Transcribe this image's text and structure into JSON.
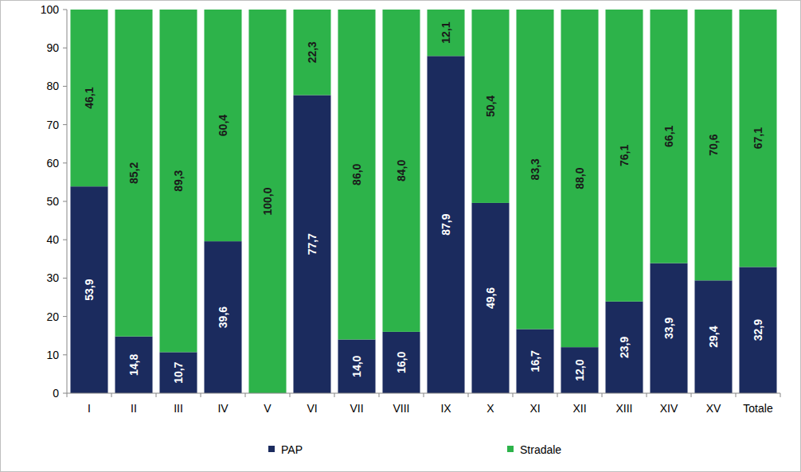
{
  "chart_data": {
    "type": "bar",
    "stacked": true,
    "data_labels": true,
    "grid": false,
    "legend": "bottom",
    "categories": [
      "I",
      "II",
      "III",
      "IV",
      "V",
      "VI",
      "VII",
      "VIII",
      "IX",
      "X",
      "XI",
      "XII",
      "XIII",
      "XIV",
      "XV",
      "Totale"
    ],
    "series": [
      {
        "name": "PAP",
        "color": "#1b2b5e",
        "values": [
          53.9,
          14.8,
          10.7,
          39.6,
          0,
          77.7,
          14.0,
          16.0,
          87.9,
          49.6,
          16.7,
          12.0,
          23.9,
          33.9,
          29.4,
          32.9
        ],
        "value_labels": [
          "53,9",
          "14,8",
          "10,7",
          "39,6",
          null,
          "77,7",
          "14,0",
          "16,0",
          "87,9",
          "49,6",
          "16,7",
          "12,0",
          "23,9",
          "33,9",
          "29,4",
          "32,9"
        ]
      },
      {
        "name": "Stradale",
        "color": "#2db34a",
        "values": [
          46.1,
          85.2,
          89.3,
          60.4,
          100.0,
          22.3,
          86.0,
          84.0,
          12.1,
          50.4,
          83.3,
          88.0,
          76.1,
          66.1,
          70.6,
          67.1
        ],
        "value_labels": [
          "46,1",
          "85,2",
          "89,3",
          "60,4",
          "100,0",
          "22,3",
          "86,0",
          "84,0",
          "12,1",
          "50,4",
          "83,3",
          "88,0",
          "76,1",
          "66,1",
          "70,6",
          "67,1"
        ]
      }
    ],
    "ylim": [
      0,
      100
    ],
    "yticks": [
      0,
      10,
      20,
      30,
      40,
      50,
      60,
      70,
      80,
      90,
      100
    ]
  }
}
